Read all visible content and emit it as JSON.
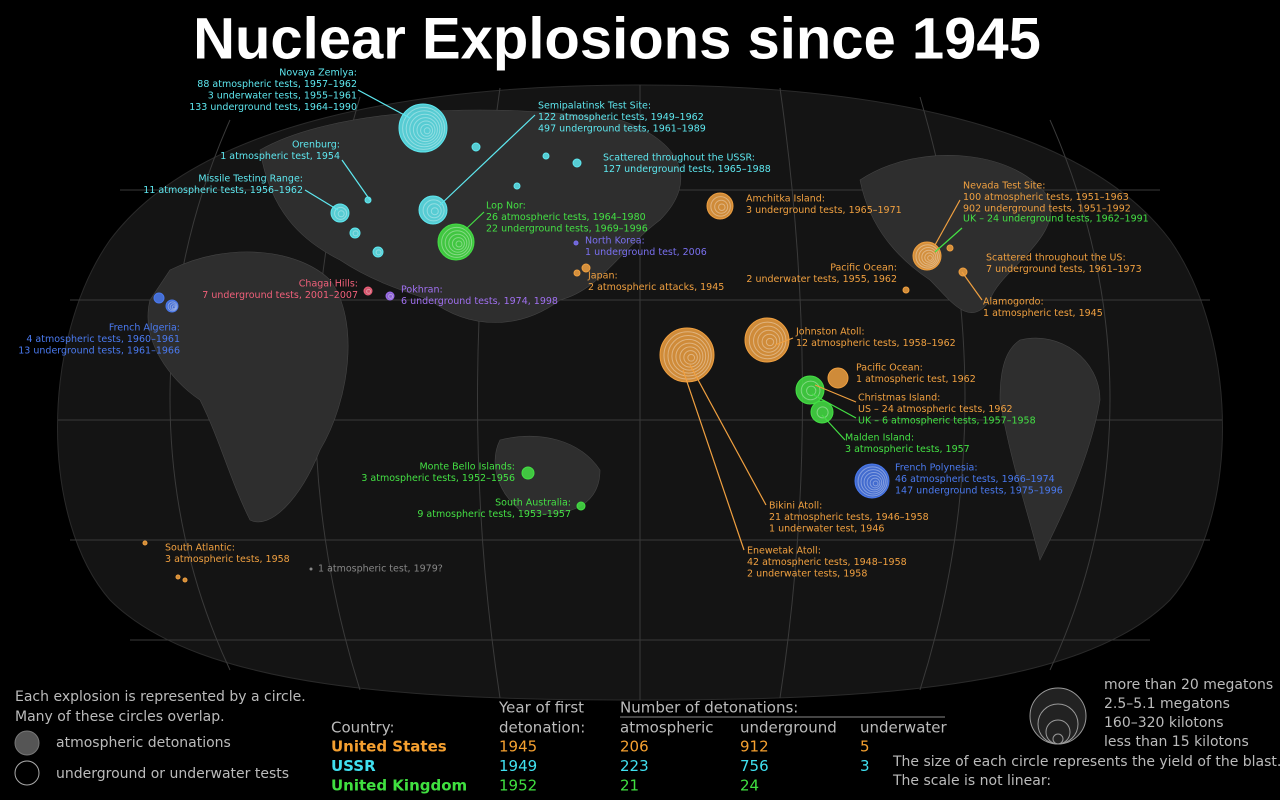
{
  "title": "Nuclear Explosions since 1945",
  "annotations": [
    {
      "color": "#5ee8f0",
      "lines": [
        "Novaya Zemlya:",
        "88 atmospheric tests, 1957–1962",
        "3 underwater tests, 1955–1961",
        "133 underground tests, 1964–1990"
      ]
    },
    {
      "color": "#5ee8f0",
      "lines": [
        "Orenburg:",
        "1 atmospheric test, 1954"
      ]
    },
    {
      "color": "#5ee8f0",
      "lines": [
        "Missile Testing Range:",
        "11 atmospheric tests, 1956–1962"
      ]
    },
    {
      "color": "#5ee8f0",
      "lines": [
        "Semipalatinsk Test Site:",
        "122 atmospheric tests, 1949–1962",
        "497 underground tests, 1961–1989"
      ]
    },
    {
      "color": "#5ee8f0",
      "lines": [
        "Scattered throughout the USSR:",
        "127 underground tests, 1965–1988"
      ]
    },
    {
      "color": "#44e044",
      "lines": [
        "Lop Nor:",
        "26 atmospheric tests, 1964–1980",
        "22 underground tests, 1969–1996"
      ]
    },
    {
      "color": "#7a70f0",
      "lines": [
        "North Korea:",
        "1 underground test, 2006"
      ]
    },
    {
      "color": "#f0a040",
      "lines": [
        "Japan:",
        "2 atmospheric attacks, 1945"
      ]
    },
    {
      "color": "#f0607a",
      "lines": [
        "Chagai Hills:",
        "7 underground tests, 2001–2007"
      ]
    },
    {
      "color": "#a070f0",
      "lines": [
        "Pokhran:",
        "6 underground tests, 1974, 1998"
      ]
    },
    {
      "color": "#4a7af0",
      "lines": [
        "French Algeria:",
        "4 atmospheric tests, 1960–1961",
        "13 underground tests, 1961–1966"
      ]
    },
    {
      "color": "#f0a040",
      "lines": [
        "Amchitka Island:",
        "3 underground tests, 1965–1971"
      ]
    },
    {
      "color": "#f0a040",
      "lines": [
        "Nevada Test Site:",
        "100 atmospheric tests, 1951–1963",
        "902 underground tests, 1951–1992"
      ]
    },
    {
      "color": "#44e044",
      "lines": [
        "UK – 24 underground tests, 1962–1991"
      ]
    },
    {
      "color": "#f0a040",
      "lines": [
        "Pacific Ocean:",
        "2 underwater tests, 1955, 1962"
      ]
    },
    {
      "color": "#f0a040",
      "lines": [
        "Scattered throughout the US:",
        "7 underground tests, 1961–1973"
      ]
    },
    {
      "color": "#f0a040",
      "lines": [
        "Alamogordo:",
        "1 atmospheric test, 1945"
      ]
    },
    {
      "color": "#f0a040",
      "lines": [
        "Johnston Atoll:",
        "12 atmospheric tests, 1958–1962"
      ]
    },
    {
      "color": "#f0a040",
      "lines": [
        "Pacific Ocean:",
        "1 atmospheric test, 1962"
      ]
    },
    {
      "color": "#f0a040",
      "lines": [
        "Christmas Island:",
        "US – 24 atmospheric tests, 1962"
      ]
    },
    {
      "color": "#44e044",
      "lines": [
        "UK – 6 atmospheric tests, 1957–1958"
      ]
    },
    {
      "color": "#44e044",
      "lines": [
        "Malden Island:",
        "3 atmospheric tests, 1957"
      ]
    },
    {
      "color": "#4a7af0",
      "lines": [
        "French Polynesia:",
        "46 atmospheric tests, 1966–1974",
        "147 underground tests, 1975–1996"
      ]
    },
    {
      "color": "#44e044",
      "lines": [
        "Monte Bello Islands:",
        "3 atmospheric tests, 1952–1956"
      ]
    },
    {
      "color": "#44e044",
      "lines": [
        "South Australia:",
        "9 atmospheric tests, 1953–1957"
      ]
    },
    {
      "color": "#f0a040",
      "lines": [
        "Bikini Atoll:",
        "21 atmospheric tests, 1946–1958",
        "1 underwater test, 1946"
      ]
    },
    {
      "color": "#f0a040",
      "lines": [
        "Enewetak Atoll:",
        "42 atmospheric tests, 1948–1958",
        "2 underwater tests, 1958"
      ]
    },
    {
      "color": "#f0a040",
      "lines": [
        "South Atlantic:",
        "3 atmospheric tests, 1958"
      ]
    },
    {
      "color": "#888888",
      "lines": [
        "1 atmospheric test, 1979?"
      ]
    }
  ],
  "legend": {
    "intro": [
      "Each explosion is represented by a circle.",
      "Many of these circles overlap."
    ],
    "atmospheric": "atmospheric detonations",
    "underground": "underground or underwater tests"
  },
  "table": {
    "country_header": "Country:",
    "year_header": [
      "Year of first",
      "detonation:"
    ],
    "count_header": "Number of detonations:",
    "columns": [
      "atmospheric",
      "underground",
      "underwater"
    ],
    "rows": [
      {
        "country": "United States",
        "color": "#f5a030",
        "year": 1945,
        "atmospheric": 206,
        "underground": 912,
        "underwater": 5
      },
      {
        "country": "USSR",
        "color": "#40e0f0",
        "year": 1949,
        "atmospheric": 223,
        "underground": 756,
        "underwater": 3
      },
      {
        "country": "United Kingdom",
        "color": "#40e040",
        "year": 1952,
        "atmospheric": 21,
        "underground": 24
      }
    ]
  },
  "scale": {
    "labels": [
      "more than 20 megatons",
      "2.5–5.1 megatons",
      "160–320 kilotons",
      "less than 15 kilotons"
    ],
    "note": [
      "The size of each circle represents the yield of the blast.",
      "The scale is not linear:"
    ]
  }
}
